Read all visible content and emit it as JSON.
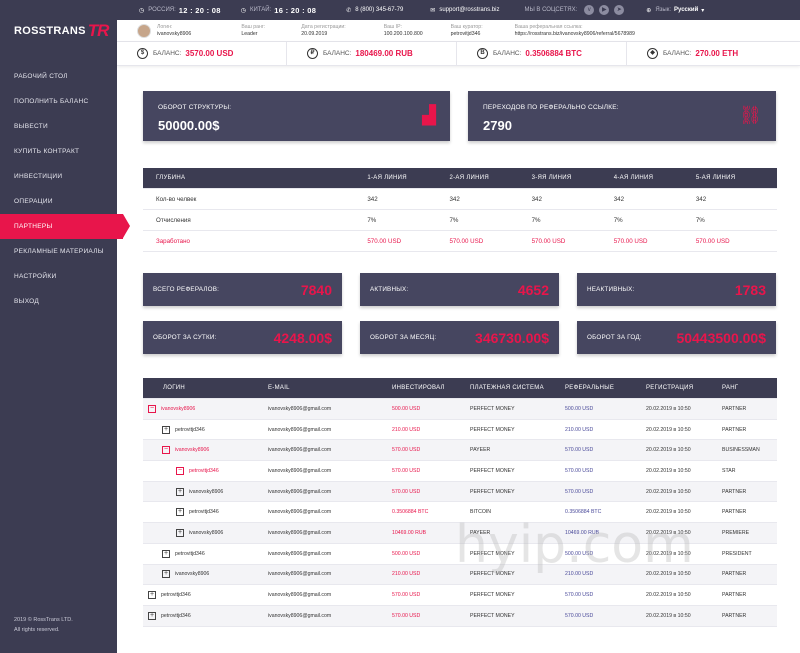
{
  "brand": {
    "name": "ROSSTRANS",
    "mark": "TR"
  },
  "sidebar": {
    "items": [
      {
        "label": "РАБОЧИЙ СТОЛ"
      },
      {
        "label": "ПОПОЛНИТЬ БАЛАНС"
      },
      {
        "label": "ВЫВЕСТИ"
      },
      {
        "label": "КУПИТЬ КОНТРАКТ"
      },
      {
        "label": "ИНВЕСТИЦИИ"
      },
      {
        "label": "ОПЕРАЦИИ"
      },
      {
        "label": "ПАРТНЕРЫ",
        "active": true
      },
      {
        "label": "РЕКЛАМНЫЕ МАТЕРИАЛЫ"
      },
      {
        "label": "НАСТРОЙКИ"
      },
      {
        "label": "ВЫХОД"
      }
    ],
    "copyright1": "2019 © RossTrans LTD.",
    "copyright2": "All rights reserved."
  },
  "topbar": {
    "russia_label": "РОССИЯ:",
    "russia_time": "12 : 20 : 08",
    "china_label": "КИТАЙ:",
    "china_time": "16 : 20 : 08",
    "phone": "8 (800) 345-67-79",
    "email": "support@rosstrans.biz",
    "social_label": "МЫ В СОЦСЕТЯХ:",
    "language_label": "Язык:",
    "language_value": "Русский"
  },
  "user": {
    "login_k": "Логин:",
    "login_v": "ivanovsky8906",
    "rank_k": "Ваш ранг:",
    "rank_v": "Leader",
    "reg_k": "Дата регистрации:",
    "reg_v": "20.09.2019",
    "ip_k": "Ваш IP:",
    "ip_v": "100.200.100.800",
    "curator_k": "Ваш куратор:",
    "curator_v": "petrovitjd346",
    "ref_k": "Ваша реферальная ссылка:",
    "ref_v": "https://rosstrans.biz/ivanovsky8906/referral/5678989"
  },
  "balances": [
    {
      "icon": "$",
      "label": "БАЛАНС:",
      "value": "3570.00 USD"
    },
    {
      "icon": "₽",
      "label": "БАЛАНС:",
      "value": "180469.00 RUB"
    },
    {
      "icon": "B",
      "label": "БАЛАНС:",
      "value": "0.3506884 BTC"
    },
    {
      "icon": "◆",
      "label": "БАЛАНС:",
      "value": "270.00 ETH"
    }
  ],
  "stats": {
    "turnover_title": "ОБОРОТ СТРУКТУРЫ:",
    "turnover_value": "50000.00$",
    "clicks_title": "ПЕРЕХОДОВ ПО РЕФЕРАЛЬНО ССЫЛКЕ:",
    "clicks_value": "2790"
  },
  "depth_table": {
    "headers": [
      "ГЛУБИНА",
      "1-АЯ ЛИНИЯ",
      "2-АЯ ЛИНИЯ",
      "3-ЯЯ ЛИНИЯ",
      "4-АЯ ЛИНИЯ",
      "5-АЯ ЛИНИЯ"
    ],
    "rows": [
      [
        "Кол-во челвек",
        "342",
        "342",
        "342",
        "342",
        "342"
      ],
      [
        "Отчисления",
        "7%",
        "7%",
        "7%",
        "7%",
        "7%"
      ],
      [
        "Заработано",
        "570.00 USD",
        "570.00 USD",
        "570.00 USD",
        "570.00 USD",
        "570.00 USD"
      ]
    ]
  },
  "summary": {
    "total_ref_t": "ВСЕГО РЕФЕРАЛОВ:",
    "total_ref_v": "7840",
    "active_t": "АКТИВНЫХ:",
    "active_v": "4652",
    "inactive_t": "НЕАКТИВНЫХ:",
    "inactive_v": "1783",
    "day_t": "ОБОРОТ ЗА СУТКИ:",
    "day_v": "4248.00$",
    "month_t": "ОБОРОТ ЗА МЕСЯЦ:",
    "month_v": "346730.00$",
    "year_t": "ОБОРОТ ЗА ГОД:",
    "year_v": "50443500.00$"
  },
  "partners": {
    "headers": [
      "ЛОГИН",
      "E-MAIL",
      "ИНВЕСТИРОВАЛ",
      "ПЛАТЕЖНАЯ СИСТЕМА",
      "РЕФЕРАЛЬНЫЕ",
      "РЕГИСТРАЦИЯ",
      "РАНГ"
    ],
    "rows": [
      {
        "level": 0,
        "toggle": "−",
        "login": "ivanovsky8906",
        "email": "ivanovsky8906@gmail.com",
        "invested": "500.00 USD",
        "system": "PERFECT MONEY",
        "referral": "500.00 USD",
        "reg": "20.02.2019 в 10:50",
        "rank": "PARTNER"
      },
      {
        "level": 1,
        "toggle": "+",
        "login": "petrovitjd346",
        "email": "ivanovsky8906@gmail.com",
        "invested": "210.00 USD",
        "system": "PERFECT MONEY",
        "referral": "210.00 USD",
        "reg": "20.02.2019 в 10:50",
        "rank": "PARTNER"
      },
      {
        "level": 1,
        "toggle": "−",
        "login": "ivanovsky8906",
        "email": "ivanovsky8906@gmail.com",
        "invested": "570.00 USD",
        "system": "PAYEER",
        "referral": "570.00 USD",
        "reg": "20.02.2019 в 10:50",
        "rank": "BUSINESSMAN"
      },
      {
        "level": 2,
        "toggle": "−",
        "login": "petrovitjd346",
        "email": "ivanovsky8906@gmail.com",
        "invested": "570.00 USD",
        "system": "PERFECT MONEY",
        "referral": "570.00 USD",
        "reg": "20.02.2019 в 10:50",
        "rank": "STAR"
      },
      {
        "level": 2,
        "toggle": "+",
        "login": "ivanovsky8906",
        "email": "ivanovsky8906@gmail.com",
        "invested": "570.00 USD",
        "system": "PERFECT MONEY",
        "referral": "570.00 USD",
        "reg": "20.02.2019 в 10:50",
        "rank": "PARTNER"
      },
      {
        "level": 2,
        "toggle": "+",
        "login": "petrovitjd346",
        "email": "ivanovsky8906@gmail.com",
        "invested": "0.3506884 BTC",
        "system": "BITCOIN",
        "referral": "0.3506884 BTC",
        "reg": "20.02.2019 в 10:50",
        "rank": "PARTNER"
      },
      {
        "level": 2,
        "toggle": "+",
        "login": "ivanovsky8906",
        "email": "ivanovsky8906@gmail.com",
        "invested": "10469.00 RUB",
        "system": "PAYEER",
        "referral": "10469.00 RUB",
        "reg": "20.02.2019 в 10:50",
        "rank": "PREMIERE"
      },
      {
        "level": 1,
        "toggle": "+",
        "login": "petrovitjd346",
        "email": "ivanovsky8906@gmail.com",
        "invested": "500.00 USD",
        "system": "PERFECT MONEY",
        "referral": "500.00 USD",
        "reg": "20.02.2019 в 10:50",
        "rank": "PRESIDENT"
      },
      {
        "level": 1,
        "toggle": "+",
        "login": "ivanovsky8906",
        "email": "ivanovsky8906@gmail.com",
        "invested": "210.00 USD",
        "system": "PERFECT MONEY",
        "referral": "210.00 USD",
        "reg": "20.02.2019 в 10:50",
        "rank": "PARTNER"
      },
      {
        "level": 0,
        "toggle": "+",
        "login": "petrovitjd346",
        "email": "ivanovsky8906@gmail.com",
        "invested": "570.00 USD",
        "system": "PERFECT MONEY",
        "referral": "570.00 USD",
        "reg": "20.02.2019 в 10:50",
        "rank": "PARTNER"
      },
      {
        "level": 0,
        "toggle": "+",
        "login": "petrovitjd346",
        "email": "ivanovsky8906@gmail.com",
        "invested": "570.00 USD",
        "system": "PERFECT MONEY",
        "referral": "570.00 USD",
        "reg": "20.02.2019 в 10:50",
        "rank": "PARTNER"
      }
    ]
  },
  "watermark": "hyip.com",
  "colors": {
    "accent": "#e8154b",
    "dark": "#3c3c52"
  }
}
